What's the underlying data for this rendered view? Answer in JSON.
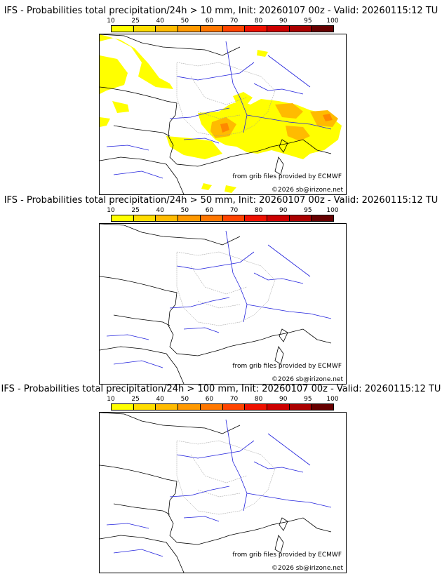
{
  "colorbar": {
    "labels": [
      "10",
      "25",
      "40",
      "50",
      "60",
      "70",
      "80",
      "90",
      "95",
      "100"
    ],
    "colors": [
      "#ffff00",
      "#ffdd00",
      "#ffbb00",
      "#ff9900",
      "#ff7700",
      "#ff4400",
      "#ee1100",
      "#cc0000",
      "#aa0000",
      "#660000"
    ]
  },
  "panels": [
    {
      "title": "IFS - Probabilities total precipitation/24h > 10 mm, Init: 20260107 00z - Valid: 20260115:12 TU",
      "credit": "from grib files provided by ECMWF",
      "copyright": "©2026 sb@irizone.net"
    },
    {
      "title": "IFS - Probabilities total precipitation/24h > 50 mm, Init: 20260107 00z - Valid: 20260115:12 TU",
      "credit": "from grib files provided by ECMWF",
      "copyright": "©2026 sb@irizone.net"
    },
    {
      "title": "IFS - Probabilities total precipitation/24h > 100 mm, Init: 20260107 00z - Valid: 20260115:12 TU",
      "credit": "from grib files provided by ECMWF",
      "copyright": "©2026 sb@irizone.net"
    }
  ],
  "colors": {
    "coast": "#000000",
    "rivers": "#2222dd",
    "borders": "#999999",
    "precip": "#ffff00",
    "precip_mid": "#ffbb00",
    "precip_high": "#ff8800"
  }
}
